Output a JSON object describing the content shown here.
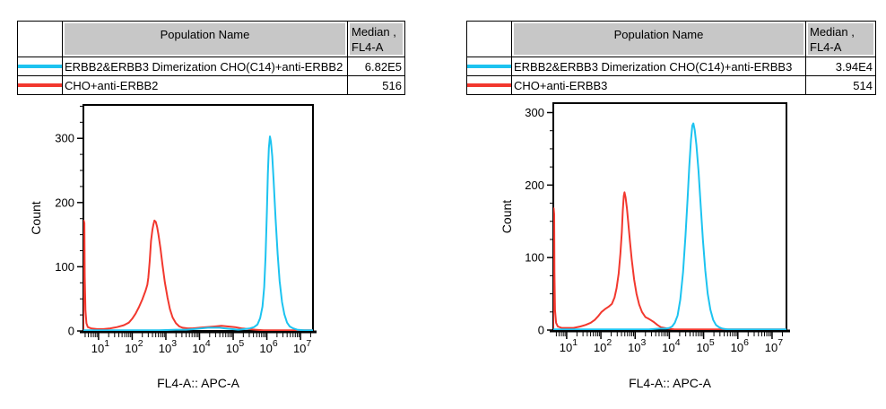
{
  "colors": {
    "cyan_series": "#1CC3F0",
    "red_series": "#F2382E",
    "table_header_bg": "#C7C7C7",
    "axis": "#000000"
  },
  "panels": [
    {
      "table": {
        "header": {
          "population": "Population Name",
          "median_line1": "Median ,",
          "median_line2": "FL4-A"
        },
        "rows": [
          {
            "swatch_color": "#1CC3F0",
            "name": "ERBB2&ERBB3 Dimerization CHO(C14)+anti-ERBB2",
            "median": "6.82E5"
          },
          {
            "swatch_color": "#F2382E",
            "name": "CHO+anti-ERBB2",
            "median": "516"
          }
        ]
      }
    },
    {
      "table": {
        "header": {
          "population": "Population Name",
          "median_line1": "Median ,",
          "median_line2": "FL4-A"
        },
        "rows": [
          {
            "swatch_color": "#1CC3F0",
            "name": "ERBB2&ERBB3 Dimerization CHO(C14)+anti-ERBB3",
            "median": "3.94E4"
          },
          {
            "swatch_color": "#F2382E",
            "name": "CHO+anti-ERBB3",
            "median": "514"
          }
        ]
      }
    }
  ],
  "chart_data": [
    {
      "type": "line",
      "subtype": "flow-cytometry-histogram",
      "title": "",
      "xlabel": "FL4-A:: APC-A",
      "ylabel": "Count",
      "x_scale": "log10",
      "xlim_log10": [
        0.55,
        7.37
      ],
      "ylim": [
        0,
        352
      ],
      "y_major_ticks": [
        0,
        100,
        200,
        300
      ],
      "y_minor_step": 25,
      "x_major_ticks_log10": [
        1,
        2,
        3,
        4,
        5,
        6,
        7
      ],
      "grid": false,
      "legend": "table-above",
      "series": [
        {
          "name": "CHO+anti-ERBB2",
          "median_fl4a": "516",
          "color": "#F2382E",
          "points_log10x_count": [
            [
              0.55,
              3
            ],
            [
              0.56,
              172
            ],
            [
              0.58,
              168
            ],
            [
              0.59,
              85
            ],
            [
              0.61,
              32
            ],
            [
              0.64,
              12
            ],
            [
              0.68,
              6
            ],
            [
              0.78,
              4
            ],
            [
              0.95,
              3
            ],
            [
              1.15,
              3
            ],
            [
              1.35,
              4
            ],
            [
              1.55,
              6
            ],
            [
              1.75,
              9
            ],
            [
              1.9,
              13
            ],
            [
              2.0,
              19
            ],
            [
              2.1,
              27
            ],
            [
              2.2,
              37
            ],
            [
              2.3,
              49
            ],
            [
              2.4,
              63
            ],
            [
              2.45,
              72
            ],
            [
              2.48,
              83
            ],
            [
              2.52,
              108
            ],
            [
              2.56,
              140
            ],
            [
              2.6,
              158
            ],
            [
              2.63,
              166
            ],
            [
              2.66,
              172
            ],
            [
              2.7,
              170
            ],
            [
              2.74,
              162
            ],
            [
              2.78,
              150
            ],
            [
              2.84,
              128
            ],
            [
              2.9,
              103
            ],
            [
              2.97,
              76
            ],
            [
              3.05,
              52
            ],
            [
              3.12,
              34
            ],
            [
              3.2,
              21
            ],
            [
              3.3,
              12
            ],
            [
              3.4,
              7
            ],
            [
              3.5,
              5
            ],
            [
              3.65,
              4
            ],
            [
              3.8,
              4
            ],
            [
              4.0,
              5
            ],
            [
              4.2,
              6
            ],
            [
              4.45,
              7
            ],
            [
              4.65,
              8
            ],
            [
              4.85,
              7
            ],
            [
              5.05,
              6
            ],
            [
              5.25,
              4
            ],
            [
              5.45,
              3
            ],
            [
              5.65,
              2
            ],
            [
              5.9,
              1
            ],
            [
              6.3,
              1
            ],
            [
              6.8,
              1
            ],
            [
              7.37,
              1
            ]
          ]
        },
        {
          "name": "ERBB2&ERBB3 Dimerization CHO(C14)+anti-ERBB2",
          "median_fl4a": "6.82E5",
          "color": "#1CC3F0",
          "points_log10x_count": [
            [
              0.55,
              1
            ],
            [
              1.0,
              1
            ],
            [
              1.6,
              1
            ],
            [
              2.2,
              1
            ],
            [
              2.8,
              1
            ],
            [
              3.3,
              2
            ],
            [
              3.6,
              2
            ],
            [
              3.85,
              3
            ],
            [
              4.05,
              4
            ],
            [
              4.25,
              5
            ],
            [
              4.45,
              5
            ],
            [
              4.6,
              5
            ],
            [
              4.75,
              4
            ],
            [
              4.95,
              3
            ],
            [
              5.15,
              2
            ],
            [
              5.35,
              3
            ],
            [
              5.5,
              4
            ],
            [
              5.62,
              6
            ],
            [
              5.72,
              10
            ],
            [
              5.8,
              20
            ],
            [
              5.87,
              38
            ],
            [
              5.92,
              68
            ],
            [
              5.96,
              115
            ],
            [
              6.0,
              185
            ],
            [
              6.03,
              245
            ],
            [
              6.06,
              285
            ],
            [
              6.09,
              303
            ],
            [
              6.12,
              295
            ],
            [
              6.16,
              272
            ],
            [
              6.2,
              235
            ],
            [
              6.26,
              175
            ],
            [
              6.32,
              120
            ],
            [
              6.38,
              78
            ],
            [
              6.45,
              45
            ],
            [
              6.52,
              26
            ],
            [
              6.6,
              13
            ],
            [
              6.68,
              7
            ],
            [
              6.78,
              4
            ],
            [
              6.9,
              2
            ],
            [
              7.1,
              1
            ],
            [
              7.37,
              1
            ]
          ]
        }
      ]
    },
    {
      "type": "line",
      "subtype": "flow-cytometry-histogram",
      "title": "",
      "xlabel": "FL4-A:: APC-A",
      "ylabel": "Count",
      "x_scale": "log10",
      "xlim_log10": [
        0.61,
        7.42
      ],
      "ylim": [
        0,
        313
      ],
      "y_major_ticks": [
        0,
        100,
        200,
        300
      ],
      "y_minor_step": 25,
      "x_major_ticks_log10": [
        1,
        2,
        3,
        4,
        5,
        6,
        7
      ],
      "grid": false,
      "legend": "table-above",
      "series": [
        {
          "name": "CHO+anti-ERBB3",
          "median_fl4a": "514",
          "color": "#F2382E",
          "points_log10x_count": [
            [
              0.61,
              3
            ],
            [
              0.62,
              168
            ],
            [
              0.635,
              160
            ],
            [
              0.645,
              80
            ],
            [
              0.66,
              28
            ],
            [
              0.69,
              10
            ],
            [
              0.74,
              5
            ],
            [
              0.85,
              3
            ],
            [
              1.0,
              3
            ],
            [
              1.2,
              3
            ],
            [
              1.4,
              5
            ],
            [
              1.55,
              7
            ],
            [
              1.7,
              10
            ],
            [
              1.82,
              14
            ],
            [
              1.92,
              19
            ],
            [
              2.02,
              25
            ],
            [
              2.12,
              29
            ],
            [
              2.22,
              32
            ],
            [
              2.32,
              36
            ],
            [
              2.4,
              45
            ],
            [
              2.46,
              58
            ],
            [
              2.52,
              78
            ],
            [
              2.57,
              105
            ],
            [
              2.61,
              135
            ],
            [
              2.64,
              165
            ],
            [
              2.67,
              185
            ],
            [
              2.69,
              190
            ],
            [
              2.72,
              183
            ],
            [
              2.76,
              168
            ],
            [
              2.8,
              148
            ],
            [
              2.85,
              122
            ],
            [
              2.9,
              98
            ],
            [
              2.97,
              70
            ],
            [
              3.04,
              50
            ],
            [
              3.12,
              35
            ],
            [
              3.2,
              25
            ],
            [
              3.3,
              18
            ],
            [
              3.38,
              16
            ],
            [
              3.45,
              14
            ],
            [
              3.55,
              11
            ],
            [
              3.65,
              7
            ],
            [
              3.75,
              4
            ],
            [
              3.85,
              3
            ],
            [
              3.95,
              2
            ],
            [
              4.15,
              1
            ],
            [
              4.6,
              1
            ],
            [
              5.2,
              1
            ],
            [
              6.2,
              1
            ],
            [
              7.42,
              1
            ]
          ]
        },
        {
          "name": "ERBB2&ERBB3 Dimerization CHO(C14)+anti-ERBB3",
          "median_fl4a": "3.94E4",
          "color": "#1CC3F0",
          "points_log10x_count": [
            [
              0.61,
              1
            ],
            [
              1.2,
              1
            ],
            [
              2.0,
              1
            ],
            [
              2.8,
              1
            ],
            [
              3.4,
              1
            ],
            [
              3.7,
              2
            ],
            [
              3.9,
              2
            ],
            [
              4.0,
              3
            ],
            [
              4.08,
              5
            ],
            [
              4.16,
              10
            ],
            [
              4.24,
              20
            ],
            [
              4.32,
              42
            ],
            [
              4.4,
              80
            ],
            [
              4.47,
              130
            ],
            [
              4.53,
              180
            ],
            [
              4.58,
              225
            ],
            [
              4.63,
              262
            ],
            [
              4.67,
              282
            ],
            [
              4.7,
              285
            ],
            [
              4.74,
              276
            ],
            [
              4.79,
              255
            ],
            [
              4.85,
              220
            ],
            [
              4.91,
              175
            ],
            [
              4.98,
              125
            ],
            [
              5.05,
              82
            ],
            [
              5.12,
              50
            ],
            [
              5.2,
              28
            ],
            [
              5.28,
              14
            ],
            [
              5.36,
              7
            ],
            [
              5.45,
              4
            ],
            [
              5.55,
              2
            ],
            [
              5.7,
              1
            ],
            [
              6.2,
              1
            ],
            [
              7.42,
              1
            ]
          ]
        }
      ]
    }
  ]
}
